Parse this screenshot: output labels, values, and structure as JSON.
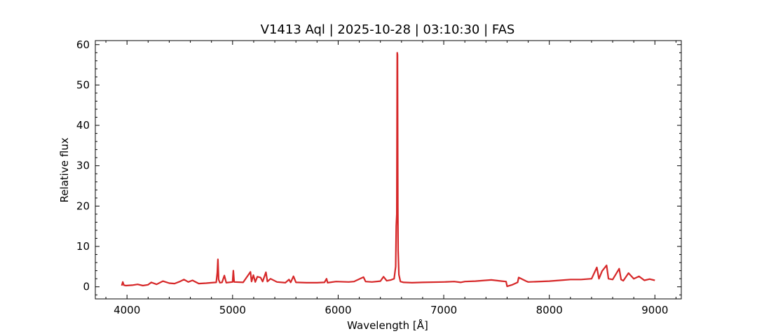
{
  "chart_data": {
    "type": "line",
    "title": "V1413 Aql | 2025-10-28 | 03:10:30 | FAS",
    "xlabel": "Wavelength [Å]",
    "ylabel": "Relative flux",
    "xlim": [
      3700,
      9250
    ],
    "ylim": [
      -3,
      61
    ],
    "x_ticks": [
      4000,
      5000,
      6000,
      7000,
      8000,
      9000
    ],
    "x_tick_labels": [
      "4000",
      "5000",
      "6000",
      "7000",
      "8000",
      "9000"
    ],
    "y_ticks": [
      0,
      10,
      20,
      30,
      40,
      50,
      60
    ],
    "y_tick_labels": [
      "0",
      "10",
      "20",
      "30",
      "40",
      "50",
      "60"
    ],
    "grid": false,
    "line_color": "#d62728",
    "series": [
      {
        "x": [
          3950,
          3960,
          3970,
          3990,
          4050,
          4100,
          4150,
          4200,
          4230,
          4280,
          4340,
          4400,
          4450,
          4500,
          4540,
          4580,
          4620,
          4680,
          4750,
          4800,
          4845,
          4855,
          4861,
          4868,
          4880,
          4900,
          4922,
          4940,
          5000,
          5007,
          5015,
          5100,
          5169,
          5180,
          5197,
          5215,
          5235,
          5265,
          5285,
          5316,
          5330,
          5360,
          5420,
          5500,
          5534,
          5550,
          5577,
          5600,
          5700,
          5800,
          5870,
          5890,
          5900,
          5980,
          6100,
          6150,
          6240,
          6260,
          6320,
          6400,
          6430,
          6460,
          6500,
          6530,
          6545,
          6550,
          6555,
          6559,
          6562,
          6565,
          6568,
          6575,
          6590,
          6620,
          6700,
          6800,
          7000,
          7100,
          7160,
          7200,
          7300,
          7450,
          7550,
          7590,
          7600,
          7650,
          7700,
          7710,
          7780,
          7800,
          8000,
          8100,
          8200,
          8300,
          8400,
          8450,
          8470,
          8500,
          8542,
          8560,
          8600,
          8662,
          8680,
          8700,
          8750,
          8800,
          8850,
          8900,
          8950,
          9000
        ],
        "y": [
          0.3,
          1.2,
          0.4,
          0.3,
          0.4,
          0.6,
          0.3,
          0.5,
          1.1,
          0.6,
          1.4,
          0.9,
          0.8,
          1.3,
          1.8,
          1.2,
          1.6,
          0.8,
          0.9,
          1.0,
          1.1,
          3.5,
          6.8,
          1.8,
          1.0,
          1.1,
          2.8,
          1.0,
          1.2,
          4.0,
          1.2,
          1.1,
          3.7,
          1.3,
          2.9,
          1.2,
          2.5,
          2.3,
          1.3,
          3.6,
          1.3,
          2.0,
          1.2,
          1.0,
          1.8,
          1.1,
          2.6,
          1.1,
          1.0,
          1.0,
          1.1,
          2.0,
          1.0,
          1.3,
          1.2,
          1.3,
          2.4,
          1.3,
          1.2,
          1.4,
          2.5,
          1.5,
          1.7,
          2.0,
          5.0,
          15.0,
          18.0,
          58.0,
          57.5,
          20.0,
          9.0,
          3.0,
          1.3,
          1.1,
          1.0,
          1.1,
          1.2,
          1.3,
          1.1,
          1.3,
          1.4,
          1.7,
          1.4,
          1.3,
          0.1,
          0.5,
          1.1,
          2.3,
          1.4,
          1.2,
          1.4,
          1.6,
          1.8,
          1.8,
          2.0,
          4.8,
          2.0,
          3.9,
          5.3,
          2.0,
          1.8,
          4.5,
          1.8,
          1.5,
          3.4,
          2.0,
          2.6,
          1.6,
          1.9,
          1.6
        ]
      }
    ]
  }
}
